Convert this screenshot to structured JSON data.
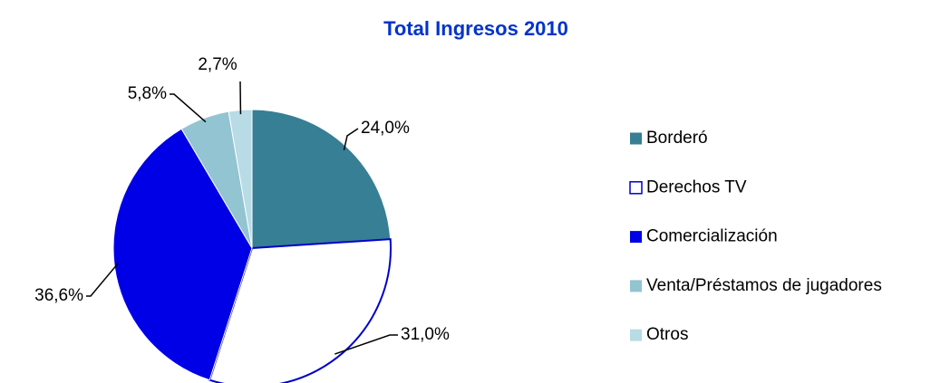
{
  "chart_data": {
    "type": "pie",
    "title": "Total Ingresos 2010",
    "categories": [
      "Borderó",
      "Derechos TV",
      "Comercialización",
      "Venta/Préstamos de jugadores",
      "Otros"
    ],
    "values": [
      24.0,
      31.0,
      36.6,
      5.8,
      2.7
    ],
    "value_labels": [
      "24,0%",
      "31,0%",
      "36,6%",
      "5,8%",
      "2,7%"
    ],
    "colors": [
      "#367f94",
      "#ffffff",
      "#0000e6",
      "#92c4d2",
      "#b8dbe5"
    ],
    "legend": "right"
  }
}
